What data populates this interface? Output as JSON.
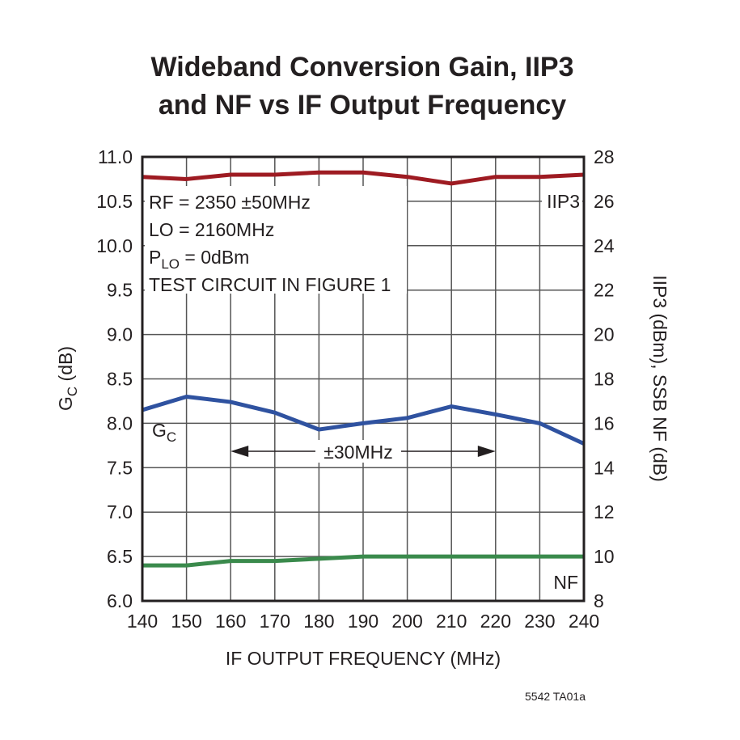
{
  "chart_data": {
    "type": "line",
    "title_lines": [
      "Wideband Conversion Gain, IIP3",
      "and NF vs IF Output Frequency"
    ],
    "xlabel": "IF OUTPUT FREQUENCY (MHz)",
    "ylabel": "G",
    "ylabel_sub": "C",
    "ylabel_suffix": " (dB)",
    "y2label": "IIP3 (dBm), SSB NF (dB)",
    "xlim": [
      140,
      240
    ],
    "ylim": [
      6.0,
      11.0
    ],
    "y2lim": [
      8,
      28
    ],
    "xticks": [
      140,
      150,
      160,
      170,
      180,
      190,
      200,
      210,
      220,
      230,
      240
    ],
    "yticks": [
      "6.0",
      "6.5",
      "7.0",
      "7.5",
      "8.0",
      "8.5",
      "9.0",
      "9.5",
      "10.0",
      "10.5",
      "11.0"
    ],
    "y2ticks": [
      "8",
      "10",
      "12",
      "14",
      "16",
      "18",
      "20",
      "22",
      "24",
      "26",
      "28"
    ],
    "grid": true,
    "x": [
      140,
      150,
      160,
      170,
      180,
      190,
      200,
      210,
      220,
      230,
      240
    ],
    "series": [
      {
        "name": "IIP3",
        "axis": "right",
        "color": "#9e1b22",
        "values": [
          27.1,
          27.0,
          27.2,
          27.2,
          27.3,
          27.3,
          27.1,
          26.8,
          27.1,
          27.1,
          27.2
        ]
      },
      {
        "name": "G",
        "name_sub": "C",
        "axis": "left",
        "color": "#2f52a0",
        "values": [
          8.15,
          8.3,
          8.24,
          8.12,
          7.93,
          8.0,
          8.06,
          8.19,
          8.1,
          8.0,
          7.77
        ]
      },
      {
        "name": "NF",
        "axis": "right",
        "color": "#3a8a4c",
        "values": [
          9.6,
          9.6,
          9.8,
          9.8,
          9.9,
          10.0,
          10.0,
          10.0,
          10.0,
          10.0,
          10.0
        ]
      }
    ],
    "annotations": {
      "conditions": [
        "RF = 2350 ±50MHz",
        "LO = 2160MHz",
        "TEST CIRCUIT IN FIGURE 1"
      ],
      "plo_prefix": "P",
      "plo_sub": "LO",
      "plo_suffix": " = 0dBm",
      "span_label": "±30MHz",
      "span_range": [
        160,
        220
      ]
    },
    "figure_id": "5542 TA01a"
  }
}
